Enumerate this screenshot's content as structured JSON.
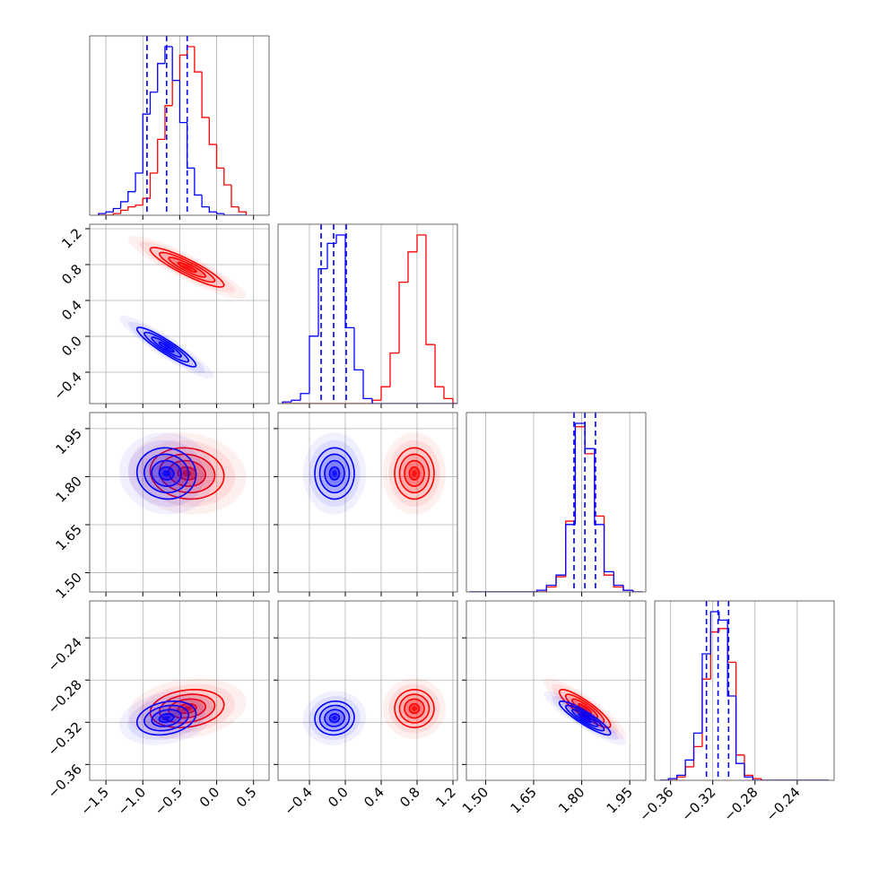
{
  "chart_data": {
    "type": "corner",
    "grid": true,
    "parameters": [
      {
        "lim": [
          -1.72,
          0.71
        ],
        "ticks": [
          {
            "value": -1.5,
            "label": "−1.5"
          },
          {
            "value": -1.0,
            "label": "−1.0"
          },
          {
            "value": -0.5,
            "label": "−0.5"
          },
          {
            "value": 0.0,
            "label": "0.0"
          },
          {
            "value": 0.5,
            "label": "0.5"
          }
        ],
        "bins": [
          -1.6,
          -1.5,
          -1.4,
          -1.3,
          -1.2,
          -1.1,
          -1.0,
          -0.9,
          -0.8,
          -0.7,
          -0.6,
          -0.5,
          -0.4,
          -0.3,
          -0.2,
          -0.1,
          0.0,
          0.1,
          0.2,
          0.3,
          0.4
        ]
      },
      {
        "lim": [
          -0.75,
          1.25
        ],
        "ticks": [
          {
            "value": -0.4,
            "label": "−0.4"
          },
          {
            "value": 0.0,
            "label": "0.0"
          },
          0.4,
          0.8,
          1.2
        ],
        "bins": [
          -0.7,
          -0.6,
          -0.5,
          -0.4,
          -0.3,
          -0.2,
          -0.1,
          0.0,
          0.1,
          0.2,
          0.3,
          0.4,
          0.5,
          0.6,
          0.7,
          0.8,
          0.9,
          1.0,
          1.1,
          1.2,
          1.3
        ]
      },
      {
        "lim": [
          1.44,
          2.0
        ],
        "ticks": [
          {
            "value": 1.5,
            "label": "1.50"
          },
          1.65,
          {
            "value": 1.8,
            "label": "1.80"
          },
          1.95
        ],
        "bins": [
          1.45,
          1.48,
          1.51,
          1.54,
          1.57,
          1.6,
          1.63,
          1.66,
          1.69,
          1.72,
          1.75,
          1.78,
          1.81,
          1.84,
          1.87,
          1.9,
          1.93,
          1.96,
          1.99
        ]
      },
      {
        "lim": [
          -0.375,
          -0.205
        ],
        "ticks": [
          {
            "value": -0.36,
            "label": "−0.36"
          },
          {
            "value": -0.32,
            "label": "−0.32"
          },
          {
            "value": -0.28,
            "label": "−0.28"
          },
          {
            "value": -0.24,
            "label": "−0.24"
          }
        ],
        "bins": [
          -0.37,
          -0.362,
          -0.354,
          -0.346,
          -0.338,
          -0.33,
          -0.322,
          -0.314,
          -0.306,
          -0.298,
          -0.29,
          -0.282,
          -0.274,
          -0.266,
          -0.258,
          -0.25,
          -0.242,
          -0.234,
          -0.226,
          -0.218,
          -0.21
        ]
      }
    ],
    "series": [
      {
        "color": "#ff0000",
        "mean": [
          -0.4,
          0.77,
          1.81,
          -0.307
        ],
        "sd": [
          0.25,
          0.11,
          0.04,
          0.009
        ],
        "corr": [
          [
            -0.9
          ],
          [
            -0.1,
            0.0
          ],
          [
            0.2,
            0.0,
            -0.88
          ]
        ],
        "hist": [
          [
            0,
            0,
            1,
            3,
            5,
            6,
            10,
            25,
            45,
            65,
            80,
            95,
            100,
            85,
            58,
            42,
            28,
            18,
            5,
            2
          ],
          [
            0,
            0,
            0,
            0,
            0,
            0,
            0,
            0,
            0,
            0,
            2,
            10,
            30,
            72,
            90,
            100,
            35,
            10,
            3,
            0
          ],
          [
            0,
            0,
            0,
            0,
            0,
            0,
            0,
            0,
            3,
            9,
            42,
            98,
            82,
            45,
            10,
            3,
            1,
            0
          ],
          [
            0,
            0,
            2,
            8,
            20,
            60,
            88,
            90,
            70,
            15,
            3,
            1,
            0,
            0,
            0,
            0,
            0,
            0,
            0,
            0
          ]
        ]
      },
      {
        "color": "#0000ff",
        "mean": [
          -0.68,
          -0.12,
          1.81,
          -0.316
        ],
        "sd": [
          0.2,
          0.11,
          0.04,
          0.008
        ],
        "corr": [
          [
            -0.92
          ],
          [
            -0.05,
            0.0
          ],
          [
            0.25,
            0.05,
            -0.9
          ]
        ],
        "hist": [
          [
            1,
            2,
            4,
            8,
            14,
            25,
            60,
            73,
            90,
            100,
            80,
            55,
            28,
            12,
            5,
            2,
            1,
            0,
            0,
            0
          ],
          [
            1,
            2,
            6,
            40,
            80,
            95,
            100,
            45,
            20,
            3,
            0,
            0,
            0,
            0,
            0,
            0,
            0,
            0,
            0,
            0
          ],
          [
            0,
            0,
            0,
            0,
            0,
            0,
            0,
            1,
            4,
            10,
            40,
            100,
            85,
            40,
            12,
            4,
            1,
            0
          ],
          [
            0,
            1,
            3,
            12,
            28,
            75,
            100,
            95,
            50,
            10,
            2,
            0,
            0,
            0,
            0,
            0,
            0,
            0,
            0,
            0
          ]
        ],
        "quantiles": [
          [
            -0.944,
            -0.678,
            -0.399
          ],
          [
            -0.27,
            -0.13,
            0.01
          ],
          [
            1.776,
            1.81,
            1.843
          ],
          [
            -0.326,
            -0.315,
            -0.305
          ]
        ]
      }
    ]
  }
}
